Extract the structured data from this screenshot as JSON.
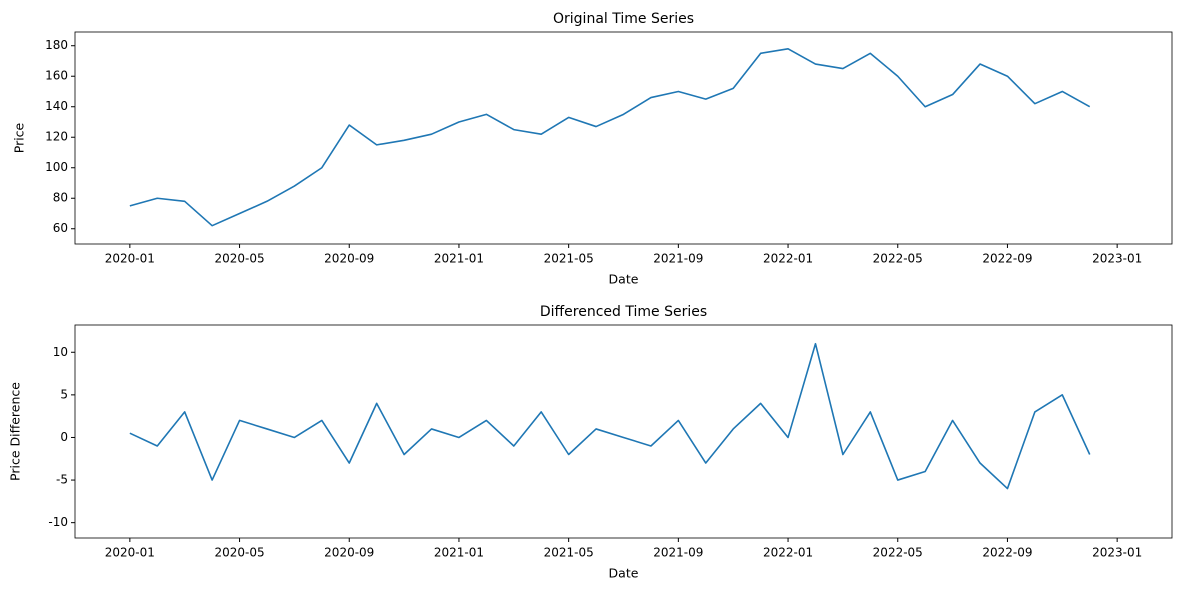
{
  "chart_data": [
    {
      "type": "line",
      "title": "Original Time Series",
      "x_label": "Date",
      "y_label": "Price",
      "color": "#1f77b4",
      "x": [
        "2020-01",
        "2020-02",
        "2020-03",
        "2020-04",
        "2020-05",
        "2020-06",
        "2020-07",
        "2020-08",
        "2020-09",
        "2020-10",
        "2020-11",
        "2020-12",
        "2021-01",
        "2021-02",
        "2021-03",
        "2021-04",
        "2021-05",
        "2021-06",
        "2021-07",
        "2021-08",
        "2021-09",
        "2021-10",
        "2021-11",
        "2021-12",
        "2022-01",
        "2022-02",
        "2022-03",
        "2022-04",
        "2022-05",
        "2022-06",
        "2022-07",
        "2022-08",
        "2022-09",
        "2022-10",
        "2022-11",
        "2022-12"
      ],
      "values": [
        75,
        80,
        78,
        62,
        70,
        78,
        88,
        100,
        128,
        115,
        118,
        122,
        130,
        135,
        125,
        122,
        133,
        127,
        135,
        146,
        150,
        145,
        152,
        175,
        178,
        168,
        165,
        175,
        160,
        140,
        148,
        168,
        160,
        142,
        150,
        140
      ],
      "xlim": [
        "2019-11",
        "2023-03"
      ],
      "xticks": [
        "2020-01",
        "2020-05",
        "2020-09",
        "2021-01",
        "2021-05",
        "2021-09",
        "2022-01",
        "2022-05",
        "2022-09",
        "2023-01"
      ],
      "ylim": [
        50,
        189
      ],
      "yticks": [
        60,
        80,
        100,
        120,
        140,
        160,
        180
      ]
    },
    {
      "type": "line",
      "title": "Differenced Time Series",
      "x_label": "Date",
      "y_label": "Price Difference",
      "color": "#1f77b4",
      "x": [
        "2020-01",
        "2020-02",
        "2020-03",
        "2020-04",
        "2020-05",
        "2020-06",
        "2020-07",
        "2020-08",
        "2020-09",
        "2020-10",
        "2020-11",
        "2020-12",
        "2021-01",
        "2021-02",
        "2021-03",
        "2021-04",
        "2021-05",
        "2021-06",
        "2021-07",
        "2021-08",
        "2021-09",
        "2021-10",
        "2021-11",
        "2021-12",
        "2022-01",
        "2022-02",
        "2022-03",
        "2022-04",
        "2022-05",
        "2022-06",
        "2022-07",
        "2022-08",
        "2022-09",
        "2022-10",
        "2022-11",
        "2022-12"
      ],
      "values": [
        0.5,
        -1,
        3,
        -5,
        2,
        1,
        0,
        2,
        -3,
        4,
        -2,
        1,
        0,
        2,
        -1,
        3,
        -2,
        1,
        0,
        -1,
        2,
        -3,
        1,
        4,
        0,
        11,
        -2,
        3,
        -5,
        -4,
        2,
        -3,
        -6,
        3,
        5,
        -2
      ],
      "xlim": [
        "2019-11",
        "2023-03"
      ],
      "xticks": [
        "2020-01",
        "2020-05",
        "2020-09",
        "2021-01",
        "2021-05",
        "2021-09",
        "2022-01",
        "2022-05",
        "2022-09",
        "2023-01"
      ],
      "ylim": [
        -11.8,
        13.2
      ],
      "yticks": [
        -10,
        -5,
        0,
        5,
        10
      ]
    }
  ]
}
